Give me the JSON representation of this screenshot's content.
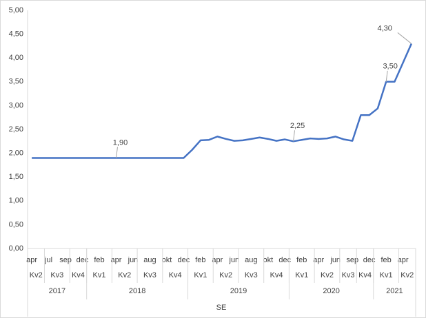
{
  "chart_data": {
    "type": "line",
    "x_label": "SE",
    "categories": [
      "apr",
      null,
      "jul",
      null,
      "sep",
      null,
      "dec",
      null,
      "feb",
      null,
      "apr",
      null,
      "jun",
      null,
      "aug",
      null,
      "okt",
      null,
      "dec",
      null,
      "feb",
      null,
      "apr",
      null,
      "jun",
      null,
      "aug",
      null,
      "okt",
      null,
      "dec",
      null,
      "feb",
      null,
      "apr",
      null,
      "jun",
      null,
      "sep",
      null,
      "dec",
      null,
      "feb",
      null,
      "apr",
      null
    ],
    "quarters": [
      {
        "label": "Kv2",
        "count": 2
      },
      {
        "label": "Kv3",
        "count": 3
      },
      {
        "label": "Kv4",
        "count": 2
      },
      {
        "label": "Kv1",
        "count": 3
      },
      {
        "label": "Kv2",
        "count": 3
      },
      {
        "label": "Kv3",
        "count": 3
      },
      {
        "label": "Kv4",
        "count": 3
      },
      {
        "label": "Kv1",
        "count": 3
      },
      {
        "label": "Kv2",
        "count": 3
      },
      {
        "label": "Kv3",
        "count": 3
      },
      {
        "label": "Kv4",
        "count": 3
      },
      {
        "label": "Kv1",
        "count": 3
      },
      {
        "label": "Kv2",
        "count": 3
      },
      {
        "label": "Kv3",
        "count": 2
      },
      {
        "label": "Kv4",
        "count": 2
      },
      {
        "label": "Kv1",
        "count": 3
      },
      {
        "label": "Kv2",
        "count": 2
      }
    ],
    "years": [
      {
        "label": "2017",
        "count": 7
      },
      {
        "label": "2018",
        "count": 12
      },
      {
        "label": "2019",
        "count": 12
      },
      {
        "label": "2020",
        "count": 10
      },
      {
        "label": "2021",
        "count": 5
      }
    ],
    "series": [
      {
        "name": "SE",
        "color": "#4472c4",
        "values": [
          1.9,
          1.9,
          1.9,
          1.9,
          1.9,
          1.9,
          1.9,
          1.9,
          1.9,
          1.9,
          1.9,
          1.9,
          1.9,
          1.9,
          1.9,
          1.9,
          1.9,
          1.9,
          1.9,
          2.07,
          2.27,
          2.28,
          2.35,
          2.3,
          2.26,
          2.27,
          2.3,
          2.33,
          2.3,
          2.26,
          2.29,
          2.25,
          2.28,
          2.31,
          2.3,
          2.31,
          2.35,
          2.29,
          2.26,
          2.8,
          2.8,
          2.94,
          3.5,
          3.5,
          3.9,
          4.3
        ],
        "value_labels": [
          null,
          null,
          null,
          null,
          null,
          null,
          null,
          null,
          null,
          null,
          "1,90",
          null,
          null,
          null,
          null,
          null,
          null,
          null,
          null,
          null,
          null,
          null,
          null,
          null,
          null,
          null,
          null,
          null,
          null,
          null,
          null,
          "2,25",
          null,
          null,
          null,
          null,
          null,
          null,
          null,
          null,
          null,
          null,
          "3,50",
          null,
          null,
          "4,30"
        ]
      }
    ],
    "ylim": [
      0,
      5
    ],
    "yticks": [
      {
        "value": 0,
        "label": "0,00"
      },
      {
        "value": 0.5,
        "label": "0,50"
      },
      {
        "value": 1,
        "label": "1,00"
      },
      {
        "value": 1.5,
        "label": "1,50"
      },
      {
        "value": 2,
        "label": "2,00"
      },
      {
        "value": 2.5,
        "label": "2,50"
      },
      {
        "value": 3,
        "label": "3,00"
      },
      {
        "value": 3.5,
        "label": "3,50"
      },
      {
        "value": 4,
        "label": "4,00"
      },
      {
        "value": 4.5,
        "label": "4,50"
      },
      {
        "value": 5,
        "label": "5,00"
      }
    ],
    "grid": false
  }
}
